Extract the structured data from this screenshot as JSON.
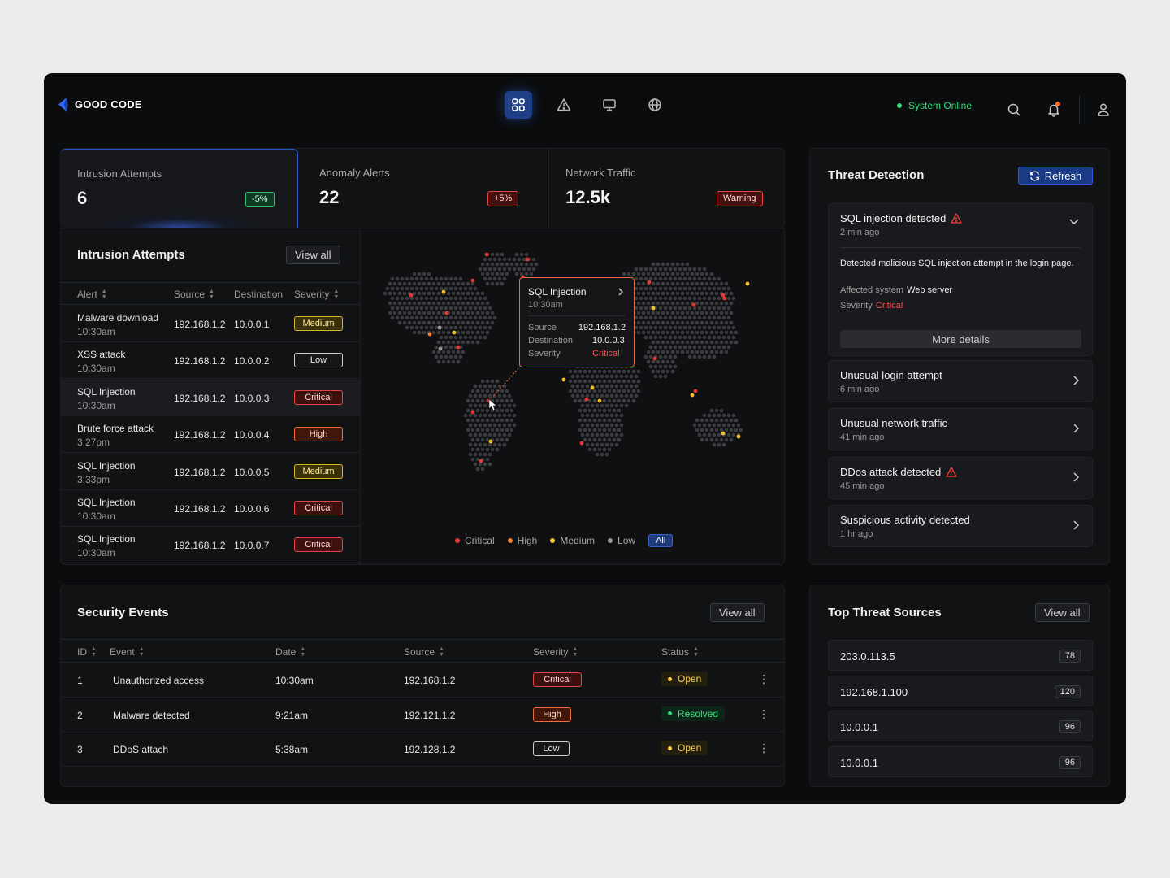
{
  "brand": {
    "name": "GOOD CODE"
  },
  "nav": {
    "items": [
      {
        "icon": "dashboard-grid-icon",
        "active": true
      },
      {
        "icon": "warning-triangle-icon",
        "active": false
      },
      {
        "icon": "monitor-icon",
        "active": false
      },
      {
        "icon": "globe-icon",
        "active": false
      }
    ]
  },
  "system": {
    "status": "System Online",
    "status_color": "#3ddc7a"
  },
  "stats": [
    {
      "label": "Intrusion Attempts",
      "value": "6",
      "badge": "-5%",
      "badge_type": "green"
    },
    {
      "label": "Anomaly Alerts",
      "value": "22",
      "badge": "+5%",
      "badge_type": "red"
    },
    {
      "label": "Network Traffic",
      "value": "12.5k",
      "badge": "Warning",
      "badge_type": "red"
    }
  ],
  "intrusions": {
    "title": "Intrusion Attempts",
    "view_all": "View all",
    "columns": [
      "Alert",
      "Source",
      "Destination",
      "Severity"
    ],
    "rows": [
      {
        "alert": "Malware download",
        "time": "10:30am",
        "source": "192.168.1.2",
        "dest": "10.0.0.1",
        "severity": "Medium"
      },
      {
        "alert": "XSS attack",
        "time": "10:30am",
        "source": "192.168.1.2",
        "dest": "10.0.0.2",
        "severity": "Low"
      },
      {
        "alert": "SQL Injection",
        "time": "10:30am",
        "source": "192.168.1.2",
        "dest": "10.0.0.3",
        "severity": "Critical"
      },
      {
        "alert": "Brute force attack",
        "time": "3:27pm",
        "source": "192.168.1.2",
        "dest": "10.0.0.4",
        "severity": "High"
      },
      {
        "alert": "SQL Injection",
        "time": "3:33pm",
        "source": "192.168.1.2",
        "dest": "10.0.0.5",
        "severity": "Medium"
      },
      {
        "alert": "SQL Injection",
        "time": "10:30am",
        "source": "192.168.1.2",
        "dest": "10.0.0.6",
        "severity": "Critical"
      },
      {
        "alert": "SQL Injection",
        "time": "10:30am",
        "source": "192.168.1.2",
        "dest": "10.0.0.7",
        "severity": "Critical"
      }
    ]
  },
  "map": {
    "tooltip": {
      "title": "SQL Injection",
      "time": "10:30am",
      "source_label": "Source",
      "source": "192.168.1.2",
      "dest_label": "Destination",
      "dest": "10.0.0.3",
      "severity_label": "Severity",
      "severity": "Critical"
    },
    "legend": [
      "Critical",
      "High",
      "Medium",
      "Low"
    ],
    "legend_all": "All",
    "colors": {
      "critical": "#e53935",
      "high": "#f57c2b",
      "medium": "#f2c230",
      "low": "#9a9a9a"
    }
  },
  "threat": {
    "title": "Threat Detection",
    "refresh": "Refresh",
    "expanded": {
      "title": "SQL injection detected",
      "time": "2 min ago",
      "description": "Detected malicious SQL injection attempt in the login page.",
      "affected_label": "Affected system",
      "affected": "Web server",
      "severity_label": "Severity",
      "severity": "Critical",
      "more": "More details"
    },
    "items": [
      {
        "title": "Unusual login attempt",
        "time": "6 min ago",
        "warn": false
      },
      {
        "title": "Unusual network traffic",
        "time": "41 min ago",
        "warn": false
      },
      {
        "title": "DDos attack detected",
        "time": "45 min ago",
        "warn": true
      },
      {
        "title": "Suspicious activity detected",
        "time": "1 hr ago",
        "warn": false
      }
    ]
  },
  "events": {
    "title": "Security Events",
    "view_all": "View all",
    "columns": [
      "ID",
      "Event",
      "Date",
      "Source",
      "Severity",
      "Status"
    ],
    "rows": [
      {
        "id": "1",
        "event": "Unauthorized access",
        "date": "10:30am",
        "source": "192.168.1.2",
        "severity": "Critical",
        "status": "Open"
      },
      {
        "id": "2",
        "event": "Malware detected",
        "date": "9:21am",
        "source": "192.121.1.2",
        "severity": "High",
        "status": "Resolved"
      },
      {
        "id": "3",
        "event": "DDoS attach",
        "date": "5:38am",
        "source": "192.128.1.2",
        "severity": "Low",
        "status": "Open"
      }
    ]
  },
  "sources": {
    "title": "Top Threat Sources",
    "view_all": "View all",
    "items": [
      {
        "ip": "203.0.113.5",
        "count": "78"
      },
      {
        "ip": "192.168.1.100",
        "count": "120"
      },
      {
        "ip": "10.0.0.1",
        "count": "96"
      },
      {
        "ip": "10.0.0.1",
        "count": "96"
      }
    ]
  }
}
